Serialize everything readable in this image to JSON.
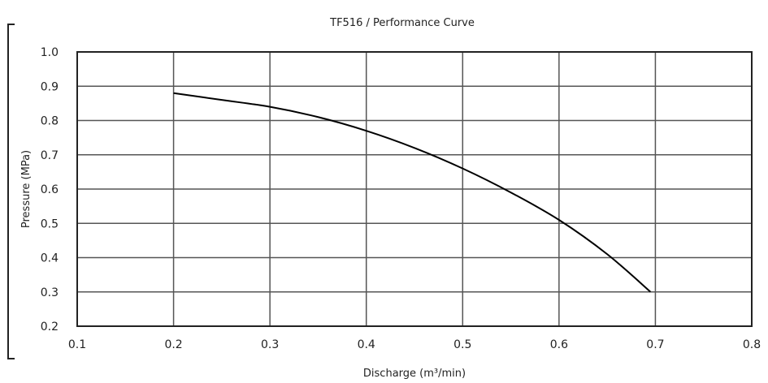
{
  "chart_data": {
    "type": "line",
    "title": "TF516 / Performance Curve",
    "xlabel": "Discharge (m³/min)",
    "ylabel": "Pressure (MPa)",
    "xlim": [
      0.1,
      0.8
    ],
    "ylim": [
      0.2,
      1.0
    ],
    "x_ticks": [
      "0.1",
      "0.2",
      "0.3",
      "0.4",
      "0.5",
      "0.6",
      "0.7",
      "0.8"
    ],
    "y_ticks": [
      "0.2",
      "0.3",
      "0.4",
      "0.5",
      "0.6",
      "0.7",
      "0.8",
      "0.9",
      "1.0"
    ],
    "grid": true,
    "series": [
      {
        "x": [
          0.2,
          0.25,
          0.3,
          0.35,
          0.4,
          0.45,
          0.5,
          0.55,
          0.6,
          0.65,
          0.695
        ],
        "values": [
          0.88,
          0.86,
          0.84,
          0.81,
          0.77,
          0.72,
          0.66,
          0.59,
          0.51,
          0.41,
          0.3
        ]
      }
    ]
  }
}
